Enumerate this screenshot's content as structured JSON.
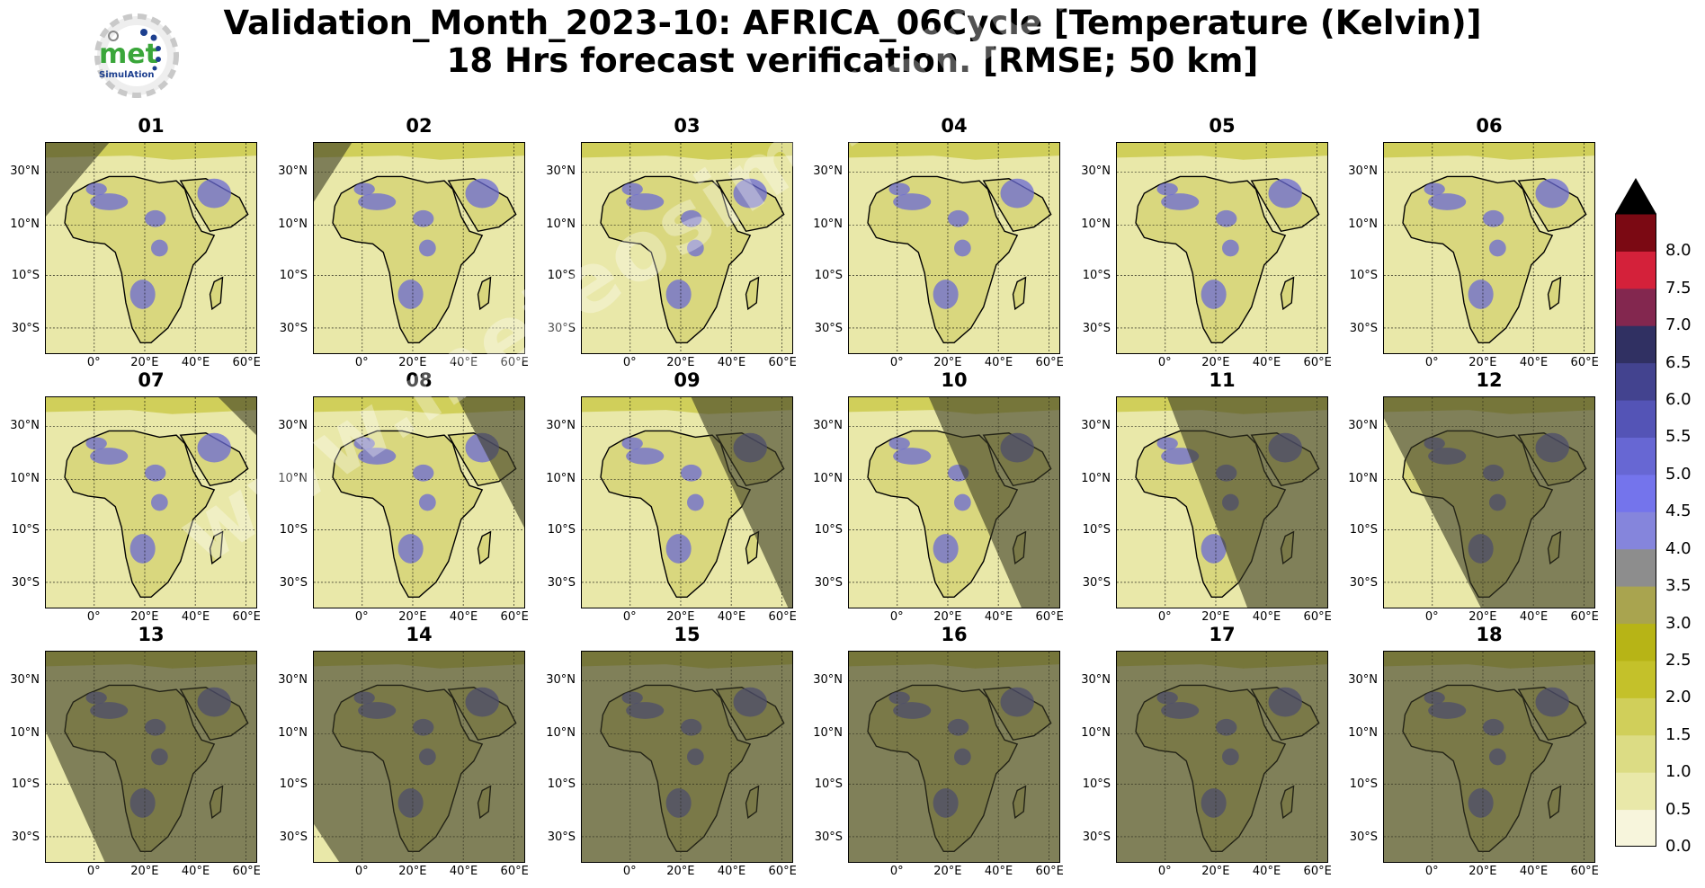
{
  "header": {
    "title_line1": "Validation_Month_2023-10: AFRICA_06Cycle [Temperature (Kelvin)]",
    "title_line2": "18 Hrs forecast verification.  [RMSE; 50 km]"
  },
  "logo": {
    "text": "met",
    "subtext": "SimulAtion"
  },
  "watermark": {
    "text": "www.meteosimulation.com"
  },
  "colors": {
    "map_base": "#d9d77e",
    "night_shade": "#3b3a24",
    "blue_error": "#6a6ad6",
    "red_error": "#b3213a",
    "border": "#000000"
  },
  "chart_data": {
    "type": "heatmap",
    "region": "AFRICA",
    "variable": "Temperature (Kelvin)",
    "metric": "RMSE",
    "resolution": "50 km",
    "lead_time": "18 Hrs",
    "panels": [
      {
        "label": "01",
        "night": [
          [
            0,
            0
          ],
          [
            0.3,
            0
          ],
          [
            0,
            0.35
          ]
        ]
      },
      {
        "label": "02",
        "night": [
          [
            0,
            0
          ],
          [
            0.18,
            0
          ],
          [
            0,
            0.28
          ]
        ]
      },
      {
        "label": "03",
        "night": []
      },
      {
        "label": "04",
        "night": []
      },
      {
        "label": "05",
        "night": []
      },
      {
        "label": "06",
        "night": []
      },
      {
        "label": "07",
        "night": [
          [
            0.82,
            0
          ],
          [
            1,
            0
          ],
          [
            1,
            0.18
          ]
        ]
      },
      {
        "label": "08",
        "night": [
          [
            0.68,
            0
          ],
          [
            1,
            0
          ],
          [
            1,
            0.62
          ]
        ]
      },
      {
        "label": "09",
        "night": [
          [
            0.52,
            0
          ],
          [
            1,
            0
          ],
          [
            1,
            1
          ],
          [
            0.98,
            1
          ]
        ]
      },
      {
        "label": "10",
        "night": [
          [
            0.38,
            0
          ],
          [
            1,
            0
          ],
          [
            1,
            1
          ],
          [
            0.82,
            1
          ]
        ]
      },
      {
        "label": "11",
        "night": [
          [
            0.24,
            0
          ],
          [
            1,
            0
          ],
          [
            1,
            1
          ],
          [
            0.62,
            1
          ]
        ]
      },
      {
        "label": "12",
        "night": [
          [
            0,
            0
          ],
          [
            1,
            0
          ],
          [
            1,
            1
          ],
          [
            0.46,
            1
          ],
          [
            0,
            0.1
          ]
        ]
      },
      {
        "label": "13",
        "night": [
          [
            0,
            0
          ],
          [
            1,
            0
          ],
          [
            1,
            1
          ],
          [
            0.28,
            1
          ],
          [
            0,
            0.38
          ]
        ]
      },
      {
        "label": "14",
        "night": [
          [
            0,
            0
          ],
          [
            1,
            0
          ],
          [
            1,
            1
          ],
          [
            0.12,
            1
          ],
          [
            0,
            0.82
          ]
        ]
      },
      {
        "label": "15",
        "night": [
          [
            0,
            0
          ],
          [
            1,
            0
          ],
          [
            1,
            1
          ],
          [
            0,
            1
          ]
        ]
      },
      {
        "label": "16",
        "night": [
          [
            0,
            0
          ],
          [
            1,
            0
          ],
          [
            1,
            1
          ],
          [
            0,
            1
          ]
        ]
      },
      {
        "label": "17",
        "night": [
          [
            0,
            0
          ],
          [
            1,
            0
          ],
          [
            1,
            1
          ],
          [
            0,
            1
          ]
        ]
      },
      {
        "label": "18",
        "night": [
          [
            0,
            0
          ],
          [
            1,
            0
          ],
          [
            1,
            1
          ],
          [
            0,
            1
          ]
        ]
      }
    ],
    "yticks": [
      "30°N",
      "10°N",
      "10°S",
      "30°S"
    ],
    "xticks": [
      "0°",
      "20°E",
      "40°E",
      "60°E"
    ],
    "colorbar": {
      "extend": "max",
      "ticks": [
        "0.0",
        "0.5",
        "1.0",
        "1.5",
        "2.0",
        "2.5",
        "3.0",
        "3.5",
        "4.0",
        "4.5",
        "5.0",
        "5.5",
        "6.0",
        "6.5",
        "7.0",
        "7.5",
        "8.0"
      ],
      "colors": [
        "#f7f5dc",
        "#e9e8a9",
        "#dcdc84",
        "#d0cf5a",
        "#c4c12a",
        "#b7b416",
        "#a9a44f",
        "#8d8d8d",
        "#8585dc",
        "#7474ec",
        "#6767d3",
        "#5454b6",
        "#43438f",
        "#303062",
        "#83274f",
        "#d4213a",
        "#7b0913"
      ]
    }
  }
}
